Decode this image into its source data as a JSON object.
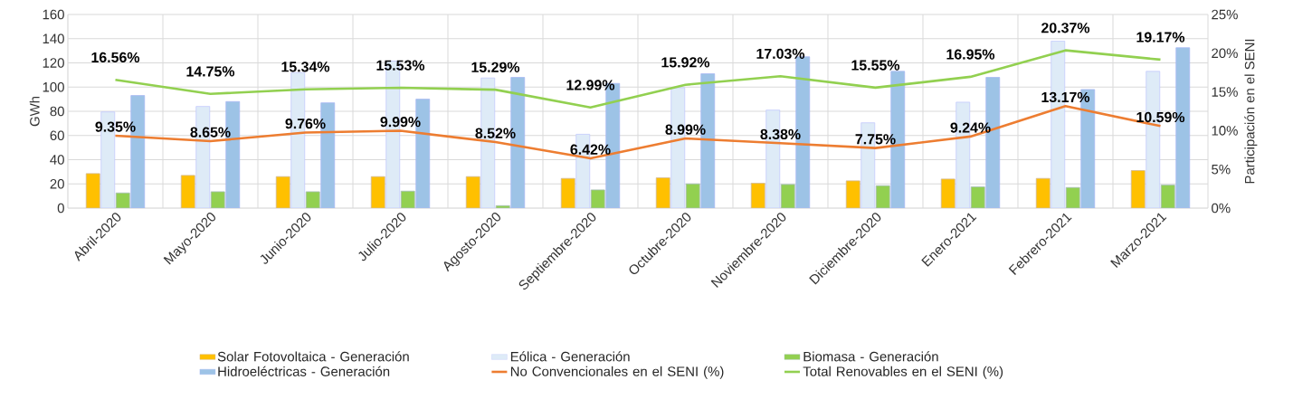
{
  "chart_data": {
    "type": "bar",
    "ylabel": "GWh",
    "y2label": "Participación en el SENI",
    "categories": [
      "Abril-2020",
      "Mayo-2020",
      "Junio-2020",
      "Julio-2020",
      "Agosto-2020",
      "Septiembre-2020",
      "Octubre-2020",
      "Noviembre-2020",
      "Diciembre-2020",
      "Enero-2021",
      "Febrero-2021",
      "Marzo-2021"
    ],
    "series": [
      {
        "name": "Solar Fotovoltaica - Generación",
        "color": "#ffc000",
        "values": [
          28.5,
          27,
          26,
          26,
          26,
          24.5,
          25,
          20.5,
          22.5,
          24,
          24.5,
          31
        ]
      },
      {
        "name": "Eólica - Generación",
        "color": "#deebf7",
        "values": [
          79.5,
          84,
          112,
          121.5,
          107.5,
          61,
          99.5,
          81,
          70.5,
          87.5,
          138,
          113
        ]
      },
      {
        "name": "Biomasa - Generación",
        "color": "#92d050",
        "values": [
          12.5,
          13.5,
          13.5,
          14,
          2,
          15,
          20,
          19.5,
          18.5,
          17.5,
          17,
          19
        ]
      },
      {
        "name": "Hidroeléctricas - Generación",
        "color": "#9dc3e6",
        "values": [
          93,
          88,
          87,
          90,
          108,
          103,
          111,
          125,
          113,
          108,
          98,
          132.5
        ]
      },
      {
        "name": "No Convencionales en el SENI (%)",
        "type": "line",
        "axis": "y2",
        "color": "#ed7d31",
        "values": [
          9.35,
          8.65,
          9.76,
          9.99,
          8.52,
          6.42,
          8.99,
          8.38,
          7.75,
          9.24,
          13.17,
          10.59
        ],
        "value_labels": [
          "9.35%",
          "8.65%",
          "9.76%",
          "9.99%",
          "8.52%",
          "6.42%",
          "8.99%",
          "8.38%",
          "7.75%",
          "9.24%",
          "13.17%",
          "10.59%"
        ]
      },
      {
        "name": "Total Renovables en el SENI (%)",
        "type": "line",
        "axis": "y2",
        "color": "#92d050",
        "values": [
          16.56,
          14.75,
          15.34,
          15.53,
          15.29,
          12.99,
          15.92,
          17.03,
          15.55,
          16.95,
          20.37,
          19.17
        ],
        "value_labels": [
          "16.56%",
          "14.75%",
          "15.34%",
          "15.53%",
          "15.29%",
          "12.99%",
          "15.92%",
          "17.03%",
          "15.55%",
          "16.95%",
          "20.37%",
          "19.17%"
        ]
      }
    ],
    "ylim": [
      0,
      160
    ],
    "yticks": [
      0,
      20,
      40,
      60,
      80,
      100,
      120,
      140,
      160
    ],
    "y2lim": [
      0,
      25
    ],
    "y2ticks": [
      {
        "value": 0,
        "label": "0%"
      },
      {
        "value": 5,
        "label": "5%"
      },
      {
        "value": 10,
        "label": "10%"
      },
      {
        "value": 15,
        "label": "15%"
      },
      {
        "value": 20,
        "label": "20%"
      },
      {
        "value": 25,
        "label": "25%"
      }
    ],
    "grid": true,
    "legend": "bottom"
  }
}
